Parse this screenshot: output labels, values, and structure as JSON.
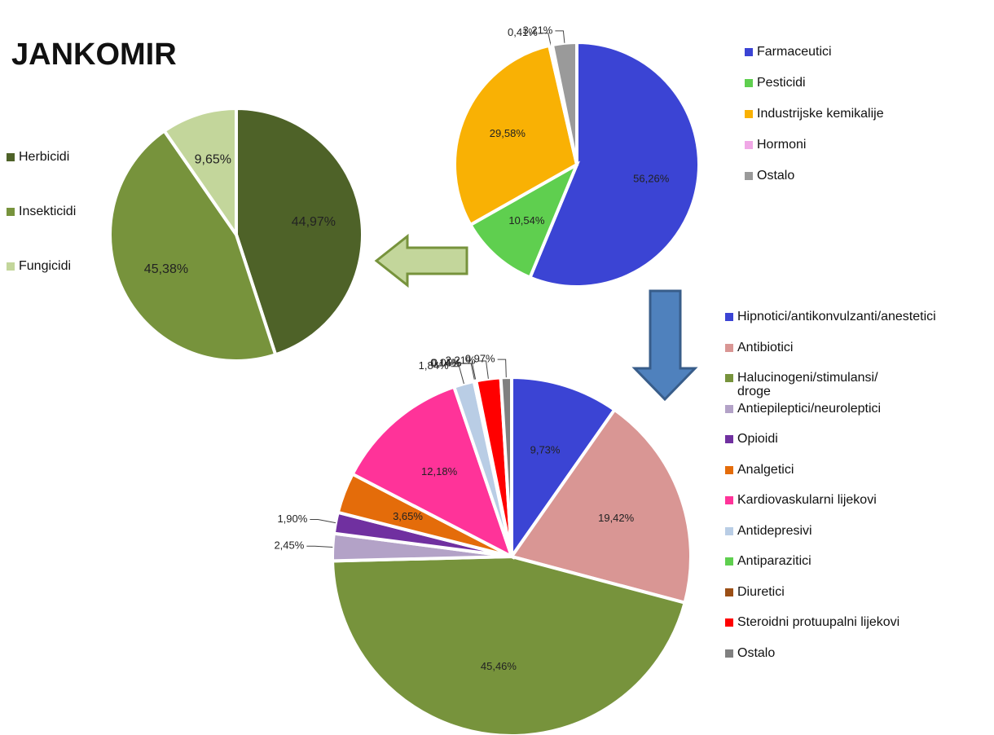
{
  "title": "JANKOMIR",
  "chart_data": [
    {
      "type": "pie",
      "categories": [
        "Farmaceutici",
        "Pesticidi",
        "Industrijske kemikalije",
        "Hormoni",
        "Ostalo"
      ],
      "values": [
        56.26,
        10.54,
        29.58,
        0.41,
        3.21
      ],
      "value_labels": [
        "56,26%",
        "10,54%",
        "29,58%",
        "0,41%",
        "3,21%"
      ],
      "colors": [
        "#3b44d4",
        "#5fcf4f",
        "#f9b104",
        "#f0a8e6",
        "#9a9a9a"
      ]
    },
    {
      "type": "pie",
      "categories": [
        "Herbicidi",
        "Insekticidi",
        "Fungicidi"
      ],
      "values": [
        44.97,
        45.38,
        9.65
      ],
      "value_labels": [
        "44,97%",
        "45,38%",
        "9,65%"
      ],
      "colors": [
        "#4e6228",
        "#77933c",
        "#c3d69b"
      ]
    },
    {
      "type": "pie",
      "categories": [
        "Hipnotici/antikonvulzanti/anestetici",
        "Antibiotici",
        "Halucinogeni/stimulansi/\ndroge",
        "Antiepileptici/neuroleptici",
        "Opioidi",
        "Analgetici",
        "Kardiovaskularni lijekovi",
        "Antidepresivi",
        "Antiparazitici",
        "Diuretici",
        "Steroidni protuupalni lijekovi",
        "Ostalo"
      ],
      "values": [
        9.73,
        19.42,
        45.46,
        2.45,
        1.9,
        3.65,
        12.18,
        1.84,
        0.14,
        0.05,
        2.21,
        0.97
      ],
      "value_labels": [
        "9,73%",
        "19,42%",
        "45,46%",
        "2,45%",
        "1,90%",
        "3,65%",
        "12,18%",
        "1,84%",
        "0,14%",
        "0,05%",
        "2,21%",
        "0,97%"
      ],
      "colors": [
        "#3b44d4",
        "#d99694",
        "#77933c",
        "#b3a2c7",
        "#7030a0",
        "#e46c0a",
        "#ff3399",
        "#b9cde5",
        "#5fcf4f",
        "#9b4f16",
        "#ff0000",
        "#808080"
      ]
    }
  ]
}
